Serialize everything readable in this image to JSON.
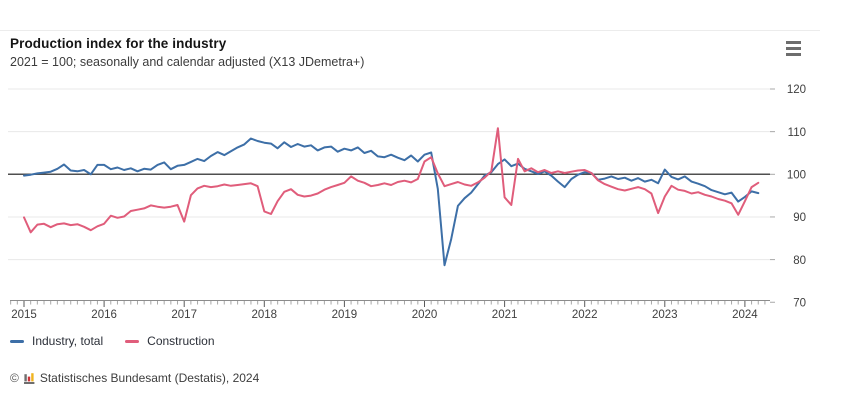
{
  "header": {
    "menu_icon": "hamburger-menu"
  },
  "chart_data": {
    "type": "line",
    "title": "Production index for the industry",
    "subtitle": "2021 = 100; seasonally and calendar adjusted (X13 JDemetra+)",
    "x_unit": "month",
    "x_range": [
      "2015-01",
      "2024-03"
    ],
    "x_tick_labels": [
      "2015",
      "2016",
      "2017",
      "2018",
      "2019",
      "2020",
      "2021",
      "2022",
      "2023",
      "2024"
    ],
    "y_ticks": [
      120,
      110,
      100,
      90,
      80,
      70
    ],
    "ylim": [
      70,
      120
    ],
    "reference_line_value": 100,
    "grid": "horizontal",
    "legend_position": "bottom-left",
    "colors": {
      "reference_line": "#4f4f4f",
      "gridline": "#e8e8e8",
      "axis": "#8c8c8c",
      "tick_minor": "#a8a8a8",
      "tick_major": "#5a5a5a",
      "tick_text": "#3f3f3f"
    },
    "series": [
      {
        "name": "Industry, total",
        "color": "#3d6fa7",
        "values": [
          99.7,
          99.9,
          100.2,
          100.4,
          100.6,
          101.3,
          102.3,
          100.9,
          100.7,
          101.0,
          100.0,
          102.2,
          102.2,
          101.2,
          101.6,
          101.0,
          101.4,
          100.7,
          101.3,
          101.1,
          102.2,
          102.8,
          101.2,
          102.0,
          102.2,
          102.9,
          103.6,
          103.1,
          104.3,
          105.2,
          104.5,
          105.4,
          106.3,
          107.0,
          108.4,
          107.8,
          107.4,
          107.2,
          106.1,
          107.5,
          106.4,
          107.1,
          106.5,
          106.8,
          105.6,
          106.3,
          106.5,
          105.3,
          106.0,
          105.6,
          106.3,
          105.0,
          105.5,
          104.2,
          104.0,
          104.6,
          103.9,
          103.3,
          104.4,
          103.0,
          104.6,
          105.1,
          96.6,
          78.7,
          84.8,
          92.6,
          94.4,
          95.7,
          97.7,
          99.7,
          100.5,
          102.4,
          103.5,
          101.9,
          102.5,
          101.3,
          100.7,
          100.1,
          100.7,
          99.7,
          98.3,
          97.0,
          98.9,
          99.9,
          100.5,
          100.3,
          98.7,
          99.0,
          99.5,
          98.9,
          99.2,
          98.5,
          99.1,
          98.3,
          98.7,
          97.9,
          101.1,
          99.4,
          98.8,
          99.5,
          98.3,
          97.8,
          97.2,
          96.3,
          95.8,
          95.3,
          95.7,
          93.6,
          94.7,
          96.0,
          95.6
        ]
      },
      {
        "name": "Construction",
        "color": "#e05d7b",
        "values": [
          89.9,
          86.4,
          88.2,
          88.4,
          87.6,
          88.3,
          88.5,
          88.1,
          88.3,
          87.7,
          86.9,
          87.8,
          88.4,
          90.3,
          89.8,
          90.1,
          91.4,
          91.7,
          92.0,
          92.7,
          92.4,
          92.2,
          92.4,
          92.8,
          88.9,
          95.1,
          96.7,
          97.3,
          97.0,
          97.2,
          97.6,
          97.3,
          97.5,
          97.7,
          97.9,
          97.2,
          91.3,
          90.7,
          93.7,
          95.9,
          96.5,
          95.2,
          94.8,
          95.0,
          95.5,
          96.4,
          97.0,
          97.5,
          98.0,
          99.5,
          98.5,
          98.0,
          97.2,
          97.5,
          97.9,
          97.5,
          98.2,
          98.5,
          98.1,
          98.9,
          103.0,
          104.0,
          100.2,
          97.2,
          97.7,
          98.2,
          97.6,
          97.3,
          98.1,
          99.2,
          100.7,
          110.8,
          94.6,
          92.8,
          103.6,
          100.7,
          101.4,
          100.5,
          101.0,
          100.3,
          100.7,
          100.3,
          100.6,
          100.9,
          101.0,
          100.3,
          98.6,
          97.7,
          97.1,
          96.5,
          96.2,
          96.6,
          97.0,
          96.5,
          95.5,
          90.9,
          94.8,
          97.3,
          96.4,
          96.1,
          95.5,
          95.8,
          95.2,
          94.8,
          94.2,
          93.8,
          93.2,
          90.5,
          93.7,
          97.0,
          98.0
        ]
      }
    ]
  },
  "footer": {
    "copyright_symbol": "©",
    "logo_icon": "destatis-bar-chart-logo",
    "source_text": "Statistisches Bundesamt (Destatis), 2024"
  }
}
